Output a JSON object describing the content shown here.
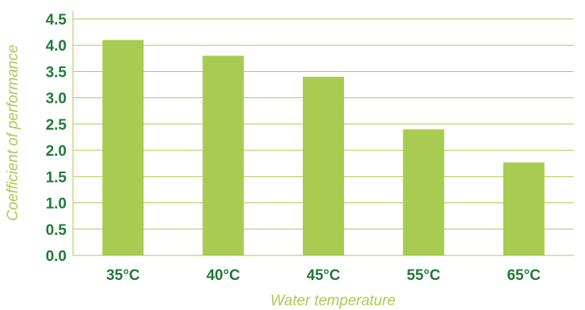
{
  "chart_data": {
    "type": "bar",
    "categories": [
      "35°C",
      "40°C",
      "45°C",
      "55°C",
      "65°C"
    ],
    "values": [
      4.1,
      3.8,
      3.4,
      2.4,
      1.77
    ],
    "xlabel": "Water temperature",
    "ylabel": "Coefficient of performance",
    "ylim": [
      0,
      4.5
    ],
    "yticks": [
      "0.0",
      "0.5",
      "1.0",
      "1.5",
      "2.0",
      "2.5",
      "3.0",
      "3.5",
      "4.0",
      "4.5"
    ],
    "grid": true,
    "colors": {
      "bar": "#a9cb52",
      "grid": "#a9cb52",
      "tick_text": "#1e7a36",
      "axis_title": "#a9cb52"
    }
  }
}
